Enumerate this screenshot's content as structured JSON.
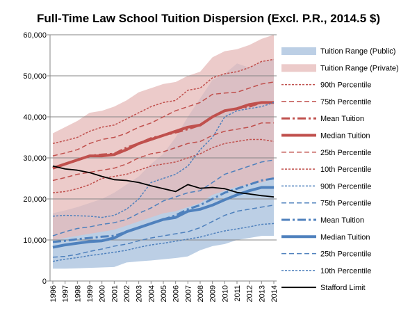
{
  "chart_data": {
    "type": "area",
    "title": "Full-Time Law School Tuition Dispersion (Excl. P.R., 2014.5 $)",
    "xlabel": "",
    "ylabel": "",
    "x": [
      1996,
      1997,
      1998,
      1999,
      2000,
      2001,
      2002,
      2003,
      2004,
      2005,
      2006,
      2007,
      2008,
      2009,
      2010,
      2011,
      2012,
      2013,
      2014
    ],
    "x_tick_labels": [
      "1996",
      "1997",
      "1998",
      "1999",
      "2000",
      "2001",
      "2002",
      "2003",
      "2004",
      "2005",
      "2006",
      "2007",
      "2008",
      "2009",
      "2010",
      "2011",
      "2012",
      "2013",
      "2014"
    ],
    "ylim": [
      0,
      60000
    ],
    "y_ticks": [
      0,
      10000,
      20000,
      30000,
      40000,
      50000,
      60000
    ],
    "y_tick_labels": [
      "0",
      "10,000",
      "20,000",
      "30,000",
      "40,000",
      "50,000",
      "60,000"
    ],
    "grid": true,
    "legend_position": "right",
    "colors": {
      "public_range": "#b8cce4",
      "private_range": "#e6b9b8",
      "public_line": "#4f81bd",
      "private_line": "#c0504d",
      "stafford": "#000000",
      "grid": "#868686"
    },
    "areas": [
      {
        "name": "Tuition Range (Public)",
        "low": [
          3000,
          3000,
          3100,
          3200,
          3300,
          3400,
          4500,
          4800,
          5000,
          5300,
          5600,
          6000,
          7500,
          8500,
          9000,
          10000,
          10500,
          11000,
          11000
        ],
        "high": [
          16500,
          17200,
          18000,
          19000,
          20000,
          21500,
          23500,
          25500,
          28500,
          31000,
          35000,
          40000,
          44500,
          49000,
          50500,
          53000,
          52000,
          53500,
          54000
        ]
      },
      {
        "name": "Tuition Range (Private)",
        "low": [
          10000,
          10500,
          11000,
          11500,
          12000,
          12500,
          13500,
          14500,
          15500,
          16500,
          17000,
          18000,
          19000,
          21000,
          22000,
          23000,
          23500,
          24000,
          25000
        ],
        "high": [
          36000,
          37500,
          39000,
          41000,
          41500,
          42500,
          44000,
          46000,
          47000,
          48000,
          48500,
          50000,
          51000,
          54500,
          56000,
          56500,
          57500,
          59000,
          60000
        ]
      }
    ],
    "series": [
      {
        "name": "90th Percentile",
        "group": "private",
        "style": "dotted",
        "values": [
          33500,
          34200,
          35000,
          36500,
          37500,
          38000,
          39500,
          41000,
          42500,
          43500,
          44000,
          46500,
          47000,
          49500,
          50500,
          51000,
          52000,
          53500,
          54000
        ]
      },
      {
        "name": "75th Percentile",
        "group": "private",
        "style": "dashed",
        "values": [
          30500,
          31200,
          32000,
          33500,
          34500,
          35000,
          36000,
          37500,
          38500,
          40000,
          41500,
          42500,
          43500,
          45500,
          45800,
          46000,
          47000,
          48000,
          48500
        ]
      },
      {
        "name": "Mean Tuition",
        "group": "private",
        "style": "dashdot",
        "values": [
          27500,
          28500,
          29500,
          30500,
          30800,
          31000,
          32500,
          33500,
          34800,
          35500,
          36200,
          37000,
          38000,
          40000,
          41500,
          42000,
          42500,
          43500,
          43500
        ]
      },
      {
        "name": "Median Tuition",
        "group": "private",
        "style": "solid-thick",
        "values": [
          27500,
          28500,
          29500,
          30500,
          30500,
          30800,
          32000,
          33500,
          34500,
          35500,
          36500,
          37500,
          38000,
          40000,
          41500,
          42000,
          43000,
          43500,
          43500
        ]
      },
      {
        "name": "25th Percentile",
        "group": "private",
        "style": "dashed",
        "values": [
          24500,
          25200,
          26000,
          26500,
          27000,
          27500,
          28500,
          30000,
          31000,
          31500,
          32500,
          33500,
          34000,
          35500,
          36500,
          37000,
          37500,
          38500,
          38500
        ]
      },
      {
        "name": "10th Percentile",
        "group": "private",
        "style": "dotted",
        "values": [
          21500,
          21800,
          22500,
          23500,
          25000,
          25500,
          26000,
          27000,
          28000,
          28500,
          29000,
          30000,
          31000,
          32500,
          33500,
          34000,
          34500,
          34500,
          34000
        ]
      },
      {
        "name": "90th Percentile",
        "group": "public",
        "style": "dotted",
        "values": [
          15800,
          16000,
          15900,
          15800,
          15500,
          16000,
          17500,
          20000,
          24000,
          25000,
          26000,
          28000,
          32000,
          35000,
          40000,
          41500,
          42000,
          42500,
          43500
        ]
      },
      {
        "name": "75th Percentile",
        "group": "public",
        "style": "dashed",
        "values": [
          11000,
          12000,
          12800,
          13200,
          13800,
          14200,
          15000,
          16500,
          17800,
          19500,
          20500,
          21500,
          22000,
          24000,
          26000,
          27000,
          28000,
          29000,
          29500
        ]
      },
      {
        "name": "Mean Tuition",
        "group": "public",
        "style": "dashdot",
        "values": [
          9500,
          9800,
          10200,
          10500,
          10800,
          11000,
          12000,
          13000,
          14000,
          15000,
          16000,
          17500,
          18500,
          20000,
          21500,
          22500,
          23500,
          24500,
          25000
        ]
      },
      {
        "name": "Median Tuition",
        "group": "public",
        "style": "solid-thick",
        "values": [
          8200,
          8800,
          9200,
          9600,
          9800,
          10500,
          12000,
          13000,
          14000,
          15000,
          15500,
          17000,
          17500,
          18500,
          19800,
          21000,
          22000,
          22800,
          22800
        ]
      },
      {
        "name": "25th Percentile",
        "group": "public",
        "style": "dashed",
        "values": [
          5800,
          6000,
          6500,
          7200,
          7800,
          8500,
          9000,
          9800,
          10500,
          11000,
          11500,
          12000,
          13000,
          14500,
          16000,
          17000,
          17500,
          18000,
          18500
        ]
      },
      {
        "name": "10th Percentile",
        "group": "public",
        "style": "dotted",
        "values": [
          4800,
          5300,
          5700,
          6200,
          6600,
          7000,
          7500,
          8200,
          8800,
          9200,
          9700,
          10200,
          10700,
          11500,
          12200,
          12700,
          13200,
          13800,
          14000
        ]
      },
      {
        "name": "Stafford Limit",
        "group": "stafford",
        "style": "solid",
        "values": [
          28000,
          27300,
          27000,
          26400,
          25500,
          24700,
          24500,
          24000,
          23200,
          22500,
          21800,
          23500,
          22600,
          22800,
          22500,
          21600,
          21200,
          20800,
          20500
        ]
      }
    ]
  }
}
